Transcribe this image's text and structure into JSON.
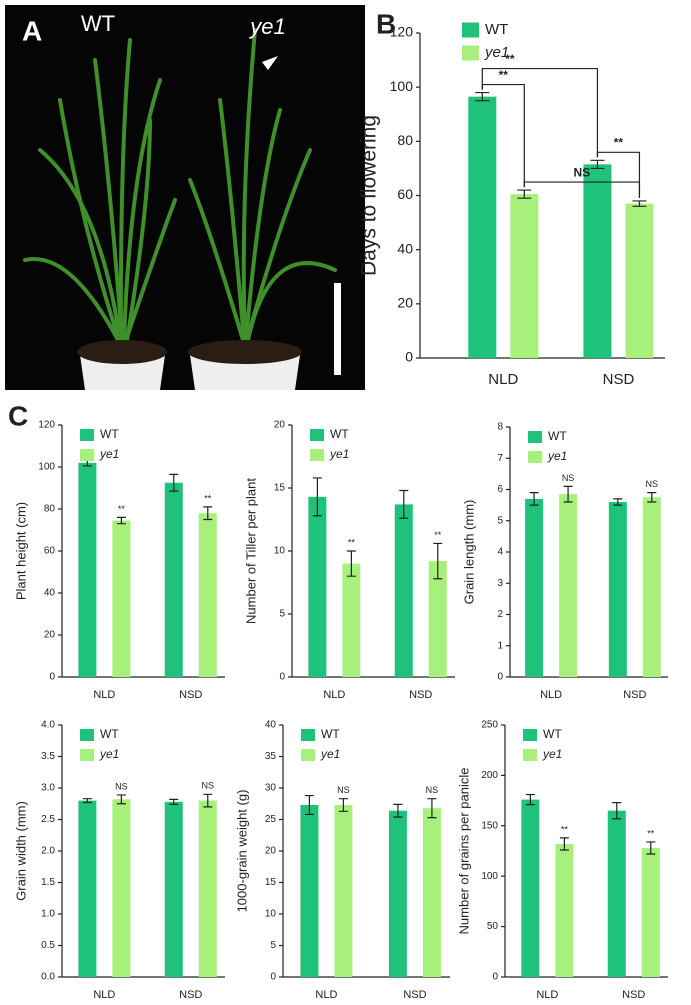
{
  "panels": {
    "a": "A",
    "b": "B",
    "c": "C"
  },
  "photo": {
    "labels": [
      "WT",
      "ye1"
    ]
  },
  "chart_data": [
    {
      "type": "bar",
      "ylabel": "Days to flowering",
      "categories": [
        "NLD",
        "NSD"
      ],
      "series": [
        {
          "name": "WT",
          "color": "#1ec27a",
          "values": [
            96.5,
            71.5
          ],
          "errors": [
            1.5,
            1.5
          ]
        },
        {
          "name": "ye1",
          "color": "#a8f07c",
          "values": [
            60.5,
            57
          ],
          "errors": [
            1.5,
            1
          ]
        }
      ],
      "ylim": [
        0,
        120
      ],
      "yticks": [
        0,
        20,
        40,
        60,
        80,
        100,
        120
      ],
      "comparisons": [
        "**",
        "**",
        "**",
        "NS"
      ]
    },
    {
      "type": "bar",
      "ylabel": "Plant height (cm)",
      "categories": [
        "NLD",
        "NSD"
      ],
      "series": [
        {
          "name": "WT",
          "color": "#1ec27a",
          "values": [
            102,
            92.5
          ],
          "errors": [
            1.5,
            4
          ]
        },
        {
          "name": "ye1",
          "color": "#a8f07c",
          "values": [
            74.5,
            78
          ],
          "errors": [
            1.5,
            3
          ]
        }
      ],
      "ylim": [
        0,
        120
      ],
      "yticks": [
        0,
        20,
        40,
        60,
        80,
        100,
        120
      ],
      "significance": [
        "**",
        "**"
      ]
    },
    {
      "type": "bar",
      "ylabel": "Number of Tiller per plant",
      "categories": [
        "NLD",
        "NSD"
      ],
      "series": [
        {
          "name": "WT",
          "color": "#1ec27a",
          "values": [
            14.3,
            13.7
          ],
          "errors": [
            1.5,
            1.1
          ]
        },
        {
          "name": "ye1",
          "color": "#a8f07c",
          "values": [
            9,
            9.2
          ],
          "errors": [
            1,
            1.4
          ]
        }
      ],
      "ylim": [
        0,
        20
      ],
      "yticks": [
        0,
        5,
        10,
        15,
        20
      ],
      "significance": [
        "**",
        "**"
      ]
    },
    {
      "type": "bar",
      "ylabel": "Grain length (mm)",
      "categories": [
        "NLD",
        "NSD"
      ],
      "series": [
        {
          "name": "WT",
          "color": "#1ec27a",
          "values": [
            5.7,
            5.6
          ],
          "errors": [
            0.2,
            0.1
          ]
        },
        {
          "name": "ye1",
          "color": "#a8f07c",
          "values": [
            5.85,
            5.75
          ],
          "errors": [
            0.25,
            0.15
          ]
        }
      ],
      "ylim": [
        0,
        8
      ],
      "yticks": [
        0,
        1,
        2,
        3,
        4,
        5,
        6,
        7,
        8
      ],
      "significance": [
        "NS",
        "NS"
      ]
    },
    {
      "type": "bar",
      "ylabel": "Grain width (mm)",
      "categories": [
        "NLD",
        "NSD"
      ],
      "series": [
        {
          "name": "WT",
          "color": "#1ec27a",
          "values": [
            2.8,
            2.78
          ],
          "errors": [
            0.03,
            0.04
          ]
        },
        {
          "name": "ye1",
          "color": "#a8f07c",
          "values": [
            2.82,
            2.8
          ],
          "errors": [
            0.07,
            0.1
          ]
        }
      ],
      "ylim": [
        0,
        4
      ],
      "yticks": [
        {
          "value": 0,
          "label": "0.0"
        },
        0.5,
        {
          "value": 1,
          "label": "1.0"
        },
        1.5,
        {
          "value": 2,
          "label": "2.0"
        },
        2.5,
        {
          "value": 3,
          "label": "3.0"
        },
        3.5,
        {
          "value": 4,
          "label": "4.0"
        }
      ],
      "significance": [
        "NS",
        "NS"
      ]
    },
    {
      "type": "bar",
      "ylabel": "1000-grain weight (g)",
      "categories": [
        "NLD",
        "NSD"
      ],
      "series": [
        {
          "name": "WT",
          "color": "#1ec27a",
          "values": [
            27.3,
            26.4
          ],
          "errors": [
            1.5,
            1
          ]
        },
        {
          "name": "ye1",
          "color": "#a8f07c",
          "values": [
            27.3,
            26.8
          ],
          "errors": [
            1,
            1.5
          ]
        }
      ],
      "ylim": [
        0,
        40
      ],
      "yticks": [
        0,
        5,
        10,
        15,
        20,
        25,
        30,
        35,
        40
      ],
      "significance": [
        "NS",
        "NS"
      ]
    },
    {
      "type": "bar",
      "ylabel": "Number of grains  per panicle",
      "categories": [
        "NLD",
        "NSD"
      ],
      "series": [
        {
          "name": "WT",
          "color": "#1ec27a",
          "values": [
            176,
            165
          ],
          "errors": [
            5,
            8
          ]
        },
        {
          "name": "ye1",
          "color": "#a8f07c",
          "values": [
            132,
            128
          ],
          "errors": [
            6,
            6
          ]
        }
      ],
      "ylim": [
        0,
        250
      ],
      "yticks": [
        0,
        50,
        100,
        150,
        200,
        250
      ],
      "significance": [
        "**",
        "**"
      ]
    }
  ]
}
